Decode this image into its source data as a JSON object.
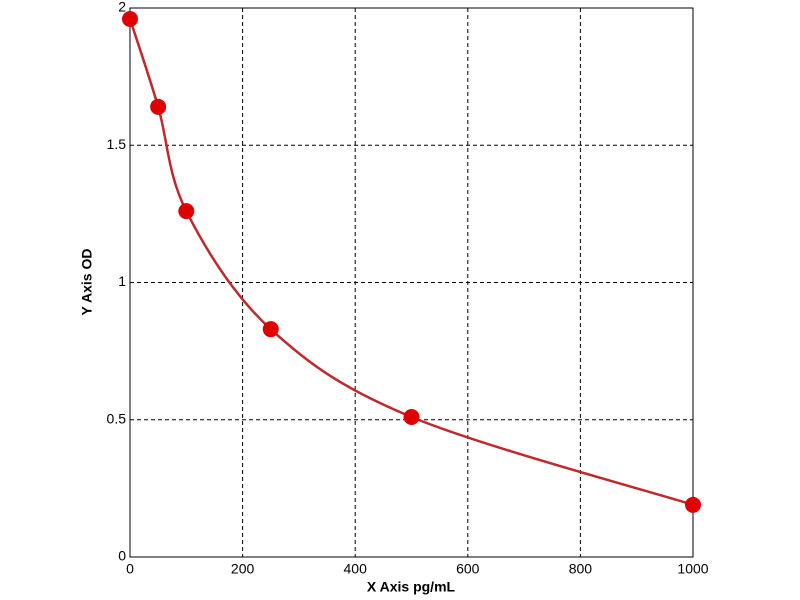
{
  "chart_data": {
    "type": "scatter",
    "x_label": "X Axis pg/mL",
    "y_label": "Y Axis OD",
    "x": [
      0,
      50,
      100,
      250,
      500,
      1000
    ],
    "values": [
      1.96,
      1.64,
      1.26,
      0.83,
      0.51,
      0.19
    ],
    "color": "#e00000",
    "line_color": "#c0282a",
    "xlim": [
      0,
      1000
    ],
    "ylim": [
      0,
      2
    ],
    "xticks": [
      0,
      200,
      400,
      600,
      800,
      1000
    ],
    "yticks": [
      0,
      0.5,
      1,
      1.5,
      2
    ],
    "grid": true
  }
}
